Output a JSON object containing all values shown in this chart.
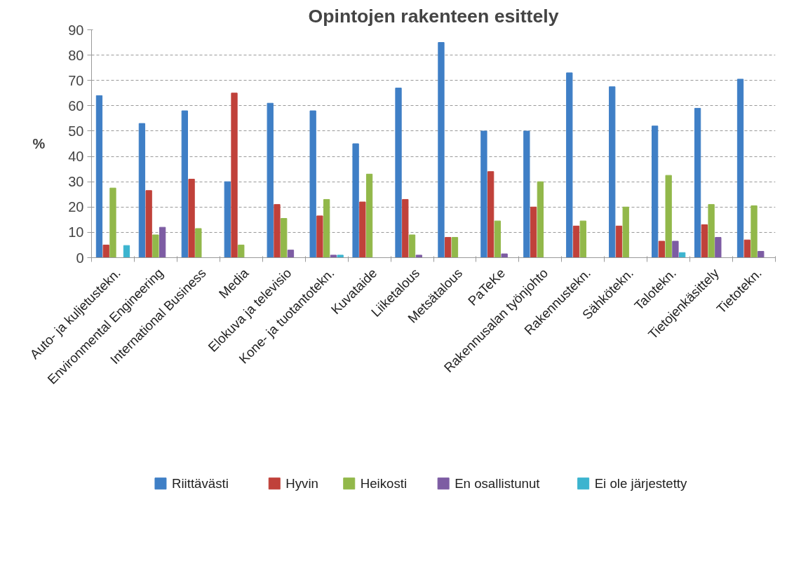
{
  "chart_data": {
    "type": "bar",
    "title": "Opintojen rakenteen esittely",
    "ylabel": "%",
    "categories": [
      "Auto- ja kuljetustekn.",
      "Environmental Engineering",
      "International Business",
      "Media",
      "Elokuva ja televisio",
      "Kone- ja tuotantotekn.",
      "Kuvataide",
      "Liiketalous",
      "Metsätalous",
      "PaTeKe",
      "Rakennusalan työnjohto",
      "Rakennustekn.",
      "Sähkötekn.",
      "Talotekn.",
      "Tietojenkäsittely",
      "Tietotekn."
    ],
    "series": [
      {
        "name": "Riittävästi",
        "color": "#3f7fc6",
        "values": [
          64,
          53,
          58,
          30,
          61,
          58,
          45,
          67,
          85,
          50,
          50,
          73,
          67.5,
          52,
          59,
          70.5
        ]
      },
      {
        "name": "Hyvin",
        "color": "#c0413a",
        "values": [
          5,
          26.5,
          31,
          65,
          21,
          16.5,
          22,
          23,
          8,
          34,
          20,
          12.5,
          12.5,
          6.5,
          13,
          7
        ]
      },
      {
        "name": "Heikosti",
        "color": "#92b84a",
        "values": [
          27.5,
          9,
          11.5,
          5,
          15.5,
          23,
          33,
          9,
          8,
          14.5,
          30,
          14.5,
          20,
          32.5,
          21,
          20.5
        ]
      },
      {
        "name": "En osallistunut",
        "color": "#7d5ca3",
        "values": [
          null,
          12,
          null,
          null,
          3,
          1,
          null,
          1,
          null,
          1.5,
          null,
          null,
          null,
          6.5,
          8,
          2.5
        ]
      },
      {
        "name": "Ei ole järjestetty",
        "color": "#3cb4cf",
        "values": [
          4.8,
          null,
          null,
          null,
          null,
          1,
          null,
          null,
          null,
          null,
          null,
          null,
          null,
          2,
          null,
          null
        ]
      }
    ],
    "ylim": [
      0,
      90
    ],
    "yticks": [
      0,
      10,
      20,
      30,
      40,
      50,
      60,
      70,
      80,
      90
    ],
    "grid": "y",
    "legend": "bottom"
  }
}
